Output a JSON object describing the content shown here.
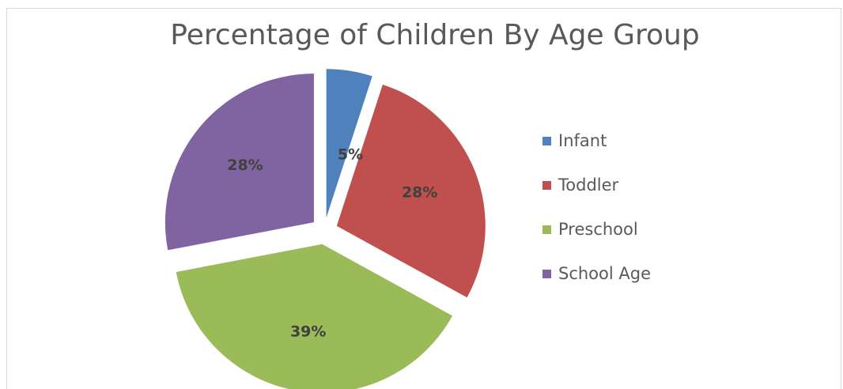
{
  "chart_data": {
    "type": "pie",
    "title": "Percentage of Children By Age Group",
    "categories": [
      "Infant",
      "Toddler",
      "Preschool",
      "School Age"
    ],
    "values": [
      5,
      28,
      39,
      28
    ],
    "labels": [
      "5%",
      "28%",
      "39%",
      "28%"
    ],
    "colors": [
      "#4f81bd",
      "#c0504d",
      "#9bbb59",
      "#8064a2"
    ],
    "exploded": true,
    "legend_position": "right"
  }
}
